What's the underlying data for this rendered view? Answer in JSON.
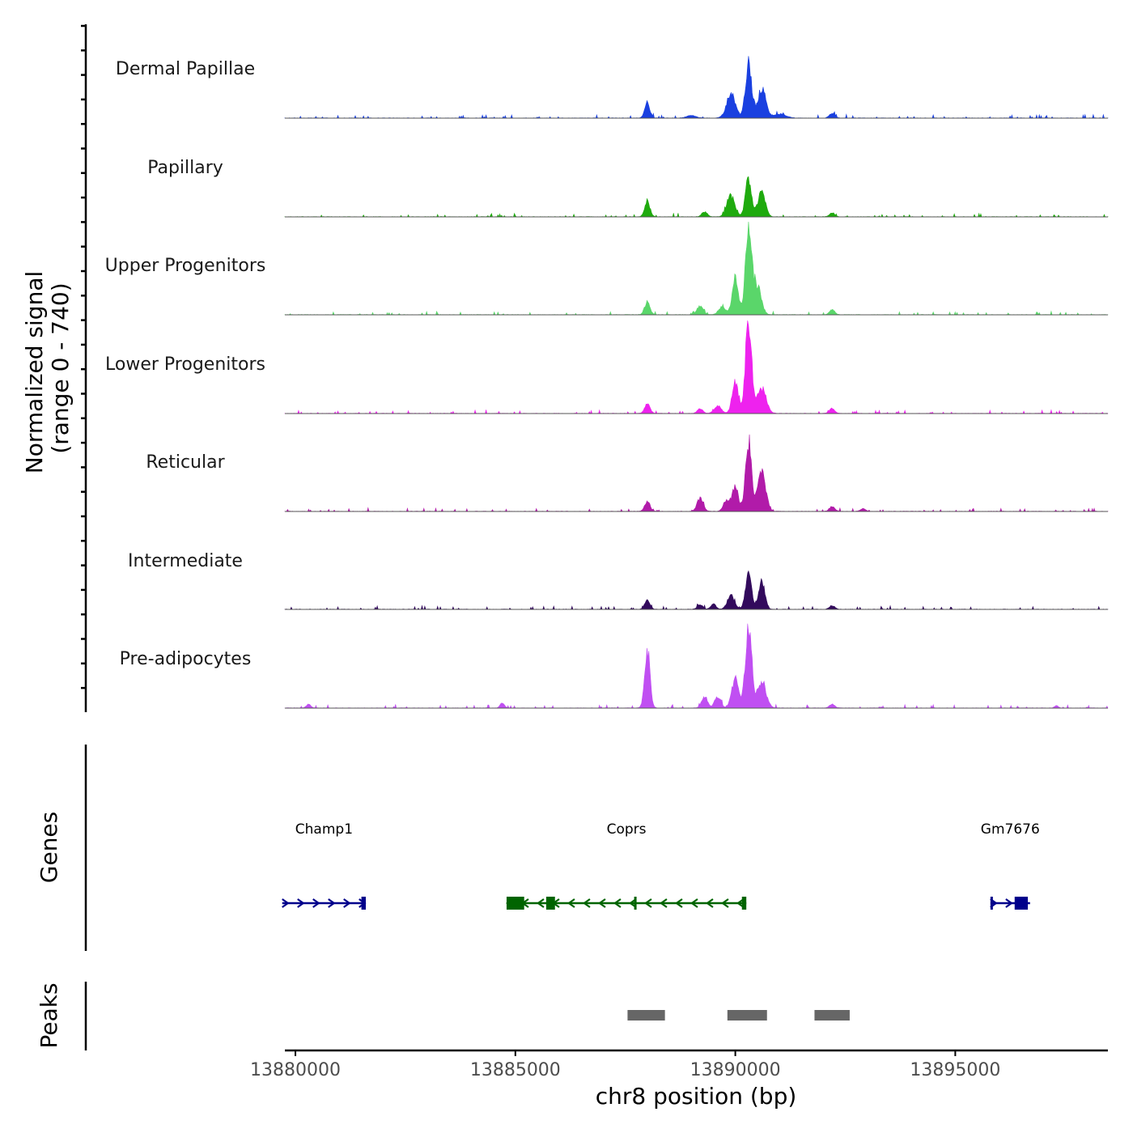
{
  "chart_data": {
    "type": "area",
    "title": "",
    "ylabel_line1": "Normalized signal",
    "ylabel_line2": "(range 0 - 740)",
    "y_range": [
      0,
      740
    ],
    "xlabel": "chr8 position (bp)",
    "xlim": [
      13879760,
      13898470
    ],
    "x_ticks": [
      13880000,
      13885000,
      13890000,
      13895000
    ],
    "x_tick_labels": [
      "13880000",
      "13885000",
      "13890000",
      "13895000"
    ],
    "series": [
      {
        "name": "Dermal Papillae",
        "color": "#1a40e0",
        "peaks": [
          [
            13888000,
            110,
            60
          ],
          [
            13889000,
            20,
            100
          ],
          [
            13889900,
            190,
            100
          ],
          [
            13890300,
            430,
            70
          ],
          [
            13890600,
            230,
            90
          ],
          [
            13891000,
            30,
            150
          ],
          [
            13892200,
            40,
            60
          ]
        ]
      },
      {
        "name": "Papillary",
        "color": "#1faa0e",
        "peaks": [
          [
            13888000,
            120,
            60
          ],
          [
            13889300,
            40,
            60
          ],
          [
            13889900,
            160,
            90
          ],
          [
            13890300,
            300,
            70
          ],
          [
            13890600,
            210,
            80
          ],
          [
            13892200,
            30,
            60
          ]
        ]
      },
      {
        "name": "Upper Progenitors",
        "color": "#5ad66a",
        "peaks": [
          [
            13888000,
            100,
            60
          ],
          [
            13889200,
            70,
            70
          ],
          [
            13889700,
            60,
            80
          ],
          [
            13890000,
            280,
            70
          ],
          [
            13890300,
            700,
            70
          ],
          [
            13890500,
            230,
            90
          ],
          [
            13892200,
            40,
            60
          ]
        ]
      },
      {
        "name": "Lower Progenitors",
        "color": "#ee22ee",
        "peaks": [
          [
            13888000,
            80,
            60
          ],
          [
            13889200,
            40,
            60
          ],
          [
            13889600,
            60,
            80
          ],
          [
            13890000,
            250,
            70
          ],
          [
            13890300,
            740,
            70
          ],
          [
            13890600,
            200,
            100
          ],
          [
            13892200,
            40,
            60
          ]
        ]
      },
      {
        "name": "Reticular",
        "color": "#b11ba9",
        "peaks": [
          [
            13888000,
            80,
            60
          ],
          [
            13889200,
            100,
            70
          ],
          [
            13889800,
            90,
            70
          ],
          [
            13890000,
            190,
            70
          ],
          [
            13890300,
            540,
            70
          ],
          [
            13890600,
            300,
            90
          ],
          [
            13892200,
            40,
            60
          ],
          [
            13892900,
            20,
            60
          ]
        ]
      },
      {
        "name": "Intermediate",
        "color": "#320a5c",
        "peaks": [
          [
            13888000,
            70,
            60
          ],
          [
            13889200,
            40,
            60
          ],
          [
            13889500,
            40,
            60
          ],
          [
            13889900,
            110,
            80
          ],
          [
            13890300,
            270,
            70
          ],
          [
            13890600,
            220,
            70
          ],
          [
            13892200,
            30,
            60
          ]
        ]
      },
      {
        "name": "Pre-adipocytes",
        "color": "#c04ff2",
        "peaks": [
          [
            13880300,
            30,
            50
          ],
          [
            13884700,
            40,
            50
          ],
          [
            13888000,
            470,
            60
          ],
          [
            13889300,
            80,
            70
          ],
          [
            13889600,
            90,
            70
          ],
          [
            13890000,
            230,
            80
          ],
          [
            13890300,
            670,
            70
          ],
          [
            13890600,
            200,
            100
          ],
          [
            13892200,
            30,
            60
          ],
          [
            13897300,
            20,
            40
          ]
        ]
      }
    ],
    "genes_label": "Genes",
    "genes": [
      {
        "name": "Champ1",
        "start": 13879700,
        "end": 13881600,
        "strand": "+",
        "color": "#00008b",
        "exons": [
          [
            13881500,
            13881600
          ]
        ]
      },
      {
        "name": "Coprs",
        "start": 13884800,
        "end": 13890250,
        "strand": "-",
        "color": "#006400",
        "exons": [
          [
            13884800,
            13885200
          ],
          [
            13885700,
            13885900
          ],
          [
            13887700,
            13887750
          ],
          [
            13890150,
            13890250
          ]
        ]
      },
      {
        "name": "Gm7676",
        "start": 13895800,
        "end": 13896700,
        "strand": "+",
        "color": "#00008b",
        "exons": [
          [
            13895800,
            13895850
          ],
          [
            13896350,
            13896650
          ]
        ]
      }
    ],
    "peaks_label": "Peaks",
    "peaks": [
      [
        13887550,
        13888400
      ],
      [
        13889820,
        13890720
      ],
      [
        13891800,
        13892600
      ]
    ]
  }
}
